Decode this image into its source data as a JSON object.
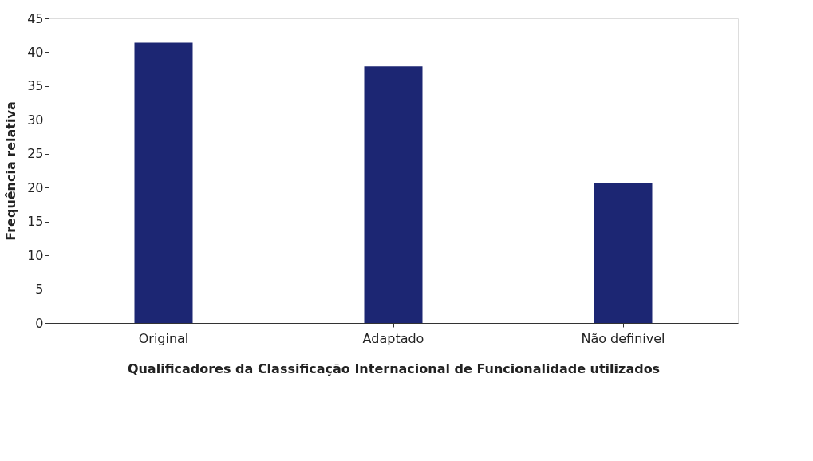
{
  "chart_data": {
    "type": "bar",
    "xlabel": "Qualificadores da Classificação Internacional de Funcionalidade utilizados",
    "ylabel": "Frequência relativa",
    "categories": [
      "Original",
      "Adaptado",
      "Não definível"
    ],
    "values": [
      41.4,
      37.9,
      20.7
    ],
    "color": "#1c2673",
    "ylim": [
      0,
      45
    ],
    "yticks": [
      0,
      5,
      10,
      15,
      20,
      25,
      30,
      35,
      40,
      45
    ],
    "grid": false
  }
}
